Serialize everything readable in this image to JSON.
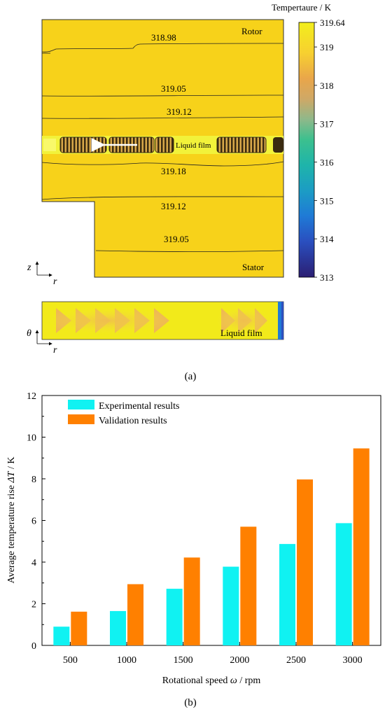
{
  "panel_a": {
    "colorbar_title": "Tempertaure",
    "colorbar_unit": "K",
    "colorbar_ticks": [
      "319.64",
      "319",
      "318",
      "317",
      "316",
      "315",
      "314",
      "313"
    ],
    "colorbar_values": [
      319.64,
      319,
      318,
      317,
      316,
      315,
      314,
      313
    ],
    "colorbar_range": [
      313,
      319.64
    ],
    "region_top": "Rotor",
    "region_bottom": "Stator",
    "film_label": "Liquid film",
    "film_label_2": "Liquid film",
    "contour_labels": [
      "318.98",
      "319.05",
      "319.12",
      "319.18",
      "319.12",
      "319.05"
    ],
    "axis_z": "z",
    "axis_r": "r",
    "axis_theta": "θ",
    "axis_r2": "r",
    "caption": "(a)",
    "colors": {
      "field": "#f7d21a",
      "film_band": "#f2f23a",
      "stripe_dark": "#3a2a10",
      "stripe_light": "#d9a84a"
    }
  },
  "panel_b": {
    "caption": "(b)",
    "xlabel_text": "Rotational speed",
    "xlabel_symbol": "ω",
    "xlabel_unit": "rpm",
    "ylabel_text": "Average temperature rise",
    "ylabel_symbol": "ΔT",
    "ylabel_unit": "K",
    "ytick_labels": [
      "0",
      "2",
      "4",
      "6",
      "8",
      "10",
      "12"
    ],
    "xtick_labels": [
      "500",
      "1000",
      "1500",
      "2000",
      "2500",
      "3000"
    ],
    "legend": [
      "Experimental results",
      "Validation results"
    ]
  },
  "chart_data": {
    "type": "bar",
    "categories": [
      "500",
      "1000",
      "1500",
      "2000",
      "2500",
      "3000"
    ],
    "series": [
      {
        "name": "Experimental results",
        "values": [
          0.9,
          1.65,
          2.72,
          3.78,
          4.87,
          5.87
        ],
        "color": "#10f2f2"
      },
      {
        "name": "Validation results",
        "values": [
          1.62,
          2.94,
          4.22,
          5.7,
          7.97,
          9.46
        ],
        "color": "#ff8000"
      }
    ],
    "xlabel": "Rotational speed ω / rpm",
    "ylabel": "Average temperature rise ΔT / K",
    "ylim": [
      0,
      12
    ],
    "yticks": [
      0,
      2,
      4,
      6,
      8,
      10,
      12
    ],
    "legend_position": "top-left",
    "grid": false
  }
}
